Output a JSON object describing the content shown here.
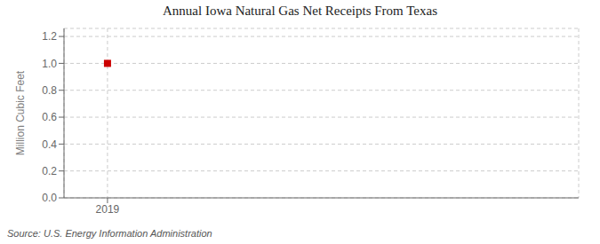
{
  "chart_data": {
    "type": "scatter",
    "title": "Annual Iowa Natural Gas Net Receipts From Texas",
    "y_label": "Million Cubic Feet",
    "annotations": [
      "Source: U.S. Energy Information Administration"
    ],
    "x": [
      2019
    ],
    "values": [
      1.0
    ],
    "color": "#cc0000",
    "marker": "square",
    "xlim": [
      2018.4,
      2025.5
    ],
    "ylim": [
      0.0,
      1.26
    ],
    "xticks": [
      2019
    ],
    "yticks": [
      {
        "value": 0.0,
        "label": "0.0"
      },
      0.2,
      0.4,
      0.6,
      0.8,
      {
        "value": 1.0,
        "label": "1.0"
      },
      1.2
    ],
    "grid": true
  }
}
